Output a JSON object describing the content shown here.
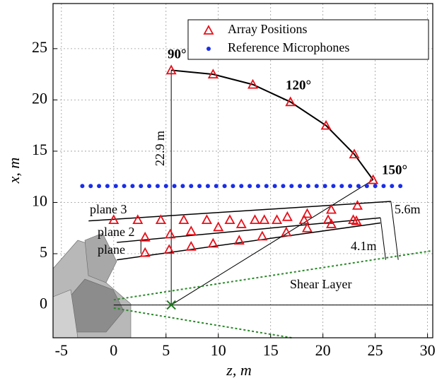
{
  "chart_data": {
    "type": "scatter",
    "xlabel": "z, m",
    "ylabel": "x, m",
    "xlim": [
      -5.8,
      30.5
    ],
    "ylim": [
      -3.2,
      29.4
    ],
    "xticks": [
      -5,
      0,
      5,
      10,
      15,
      20,
      25,
      30
    ],
    "yticks": [
      0,
      5,
      10,
      15,
      20,
      25
    ],
    "grid": true,
    "legend": "upper right",
    "series": [
      {
        "name": "Array Positions",
        "color": "#e8101a",
        "marker": "triangle",
        "x": [
          5.5,
          9.5,
          13.3,
          16.9,
          20.3,
          23.0,
          24.8,
          3.0,
          5.3,
          7.4,
          9.5,
          12.0,
          14.2,
          16.5,
          18.5,
          20.8,
          23.2,
          3.0,
          5.4,
          7.4,
          10.0,
          12.2,
          14.4,
          16.6,
          18.5,
          20.8,
          23.3,
          0.0,
          2.3,
          4.5,
          6.7,
          8.9,
          11.1,
          13.5,
          15.6,
          18.2,
          20.5,
          22.9
        ],
        "values": [
          22.9,
          22.5,
          21.5,
          19.8,
          17.5,
          14.7,
          12.2,
          5.1,
          5.4,
          5.7,
          6.0,
          6.3,
          6.7,
          7.1,
          7.5,
          7.9,
          8.2,
          6.6,
          6.9,
          7.2,
          7.6,
          7.9,
          8.3,
          8.6,
          8.9,
          9.3,
          9.7,
          8.3,
          8.3,
          8.3,
          8.3,
          8.3,
          8.3,
          8.3,
          8.3,
          8.3,
          8.3,
          8.3
        ]
      },
      {
        "name": "Reference Microphones",
        "color": "#1a2ee8",
        "marker": "dot",
        "x": [
          -3.0,
          -2.2,
          -1.4,
          -0.6,
          0.2,
          1.0,
          1.8,
          2.6,
          3.4,
          4.2,
          5.0,
          5.8,
          6.6,
          7.4,
          8.2,
          9.0,
          9.8,
          10.6,
          11.4,
          12.2,
          13.0,
          13.8,
          14.6,
          15.4,
          16.2,
          17.0,
          17.8,
          18.6,
          19.4,
          20.2,
          21.0,
          21.8,
          22.6,
          23.4,
          24.2,
          25.0,
          25.8,
          26.6,
          27.4
        ],
        "values": [
          11.6,
          11.6,
          11.6,
          11.6,
          11.6,
          11.6,
          11.6,
          11.6,
          11.6,
          11.6,
          11.6,
          11.6,
          11.6,
          11.6,
          11.6,
          11.6,
          11.6,
          11.6,
          11.6,
          11.6,
          11.6,
          11.6,
          11.6,
          11.6,
          11.6,
          11.6,
          11.6,
          11.6,
          11.6,
          11.6,
          11.6,
          11.6,
          11.6,
          11.6,
          11.6,
          11.6,
          11.6,
          11.6,
          11.6
        ]
      }
    ],
    "annotations": [
      "90°",
      "120°",
      "150°",
      "22.9 m",
      "plane 3",
      "plane 2",
      "plane",
      "5.6m",
      "4.1m",
      "Shear Layer"
    ]
  }
}
